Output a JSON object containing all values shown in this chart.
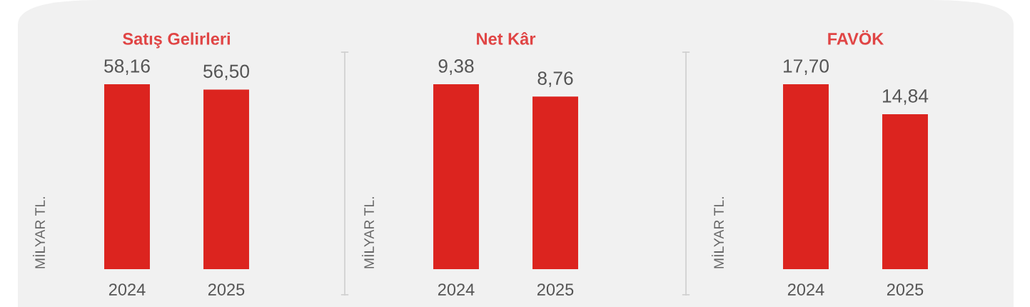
{
  "chart_data": [
    {
      "type": "bar",
      "title": "Satış Gelirleri",
      "ylabel": "MİLYAR TL.",
      "categories": [
        "2024",
        "2025"
      ],
      "values": [
        58.16,
        56.5
      ],
      "value_labels": [
        "58,16",
        "56,50"
      ],
      "color": "#dc241f",
      "tick_labels": "x"
    },
    {
      "type": "bar",
      "title": "Net Kâr",
      "ylabel": "MİLYAR TL.",
      "categories": [
        "2024",
        "2025"
      ],
      "values": [
        9.38,
        8.76
      ],
      "value_labels": [
        "9,38",
        "8,76"
      ],
      "color": "#dc241f",
      "tick_labels": "x"
    },
    {
      "type": "bar",
      "title": "FAVÖK",
      "ylabel": "MİLYAR TL.",
      "categories": [
        "2024",
        "2025"
      ],
      "values": [
        17.7,
        14.84
      ],
      "value_labels": [
        "17,70",
        "14,84"
      ],
      "color": "#dc241f",
      "tick_labels": "x"
    }
  ]
}
